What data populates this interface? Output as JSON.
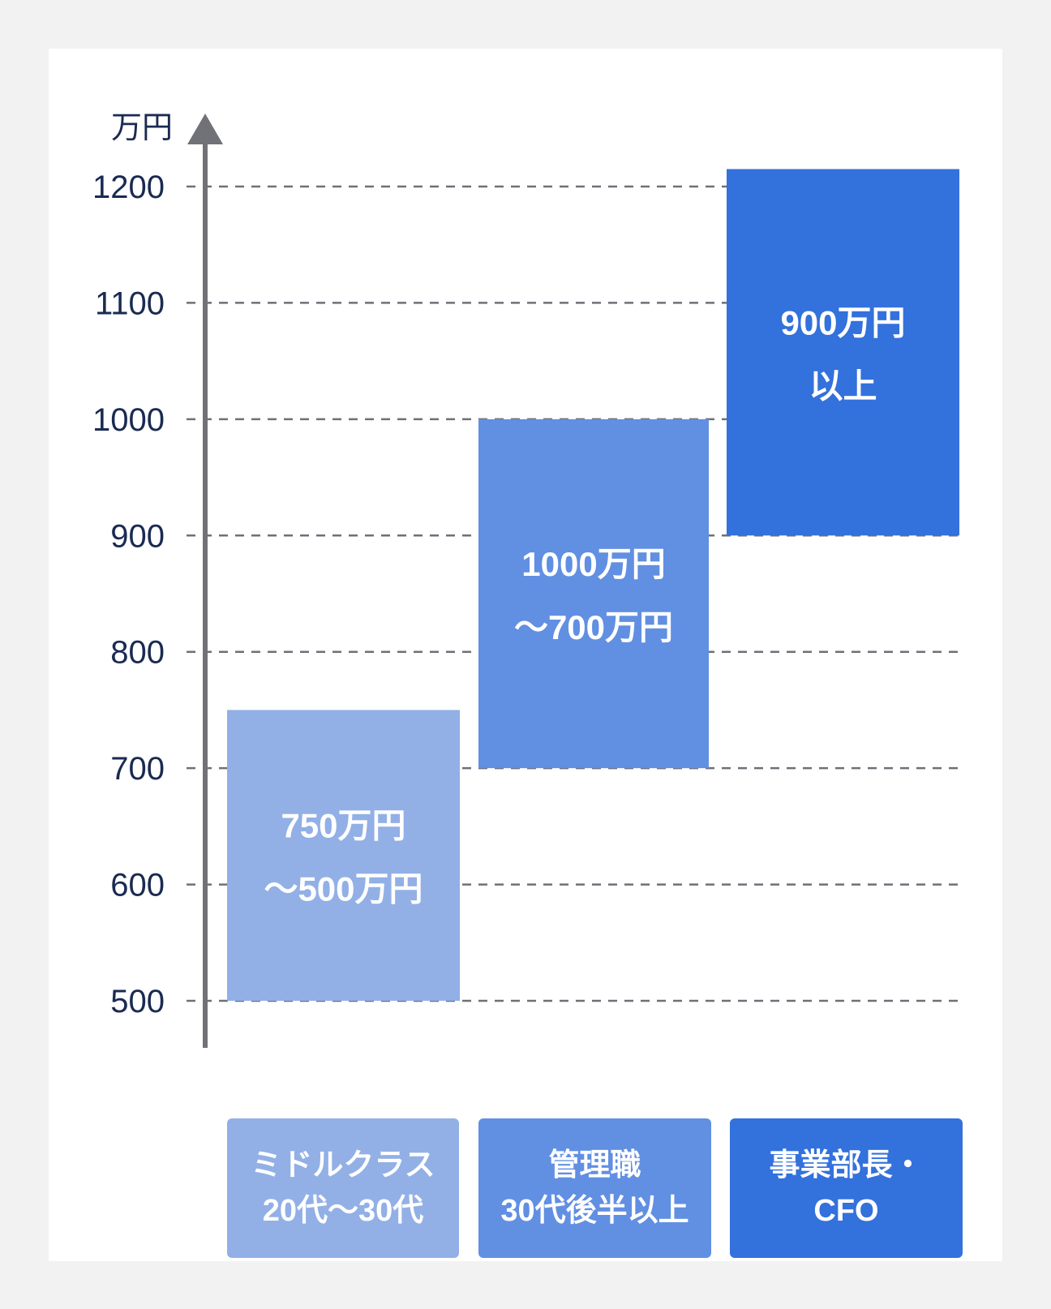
{
  "chart_data": {
    "type": "range-bar",
    "unit_label": "万円",
    "y_ticks": [
      500,
      600,
      700,
      800,
      900,
      1000,
      1100,
      1200
    ],
    "ylim": [
      500,
      1200
    ],
    "grid": true,
    "bars": [
      {
        "category_line1": "ミドルクラス",
        "category_line2": "20代〜30代",
        "low": 500,
        "high": 750,
        "label_line1": "750万円",
        "label_line2": "〜500万円",
        "color": "#92b0e6"
      },
      {
        "category_line1": "管理職",
        "category_line2": "30代後半以上",
        "low": 700,
        "high": 1000,
        "label_line1": "1000万円",
        "label_line2": "〜700万円",
        "color": "#618fe2"
      },
      {
        "category_line1": "事業部長・",
        "category_line2": "CFO",
        "low": 900,
        "high": 1215,
        "label_line1": "900万円",
        "label_line2": "以上",
        "color": "#3371dc"
      }
    ],
    "colors": {
      "axis": "#707277",
      "grid": "#6e7079",
      "tick_text": "#1a2a52"
    }
  }
}
